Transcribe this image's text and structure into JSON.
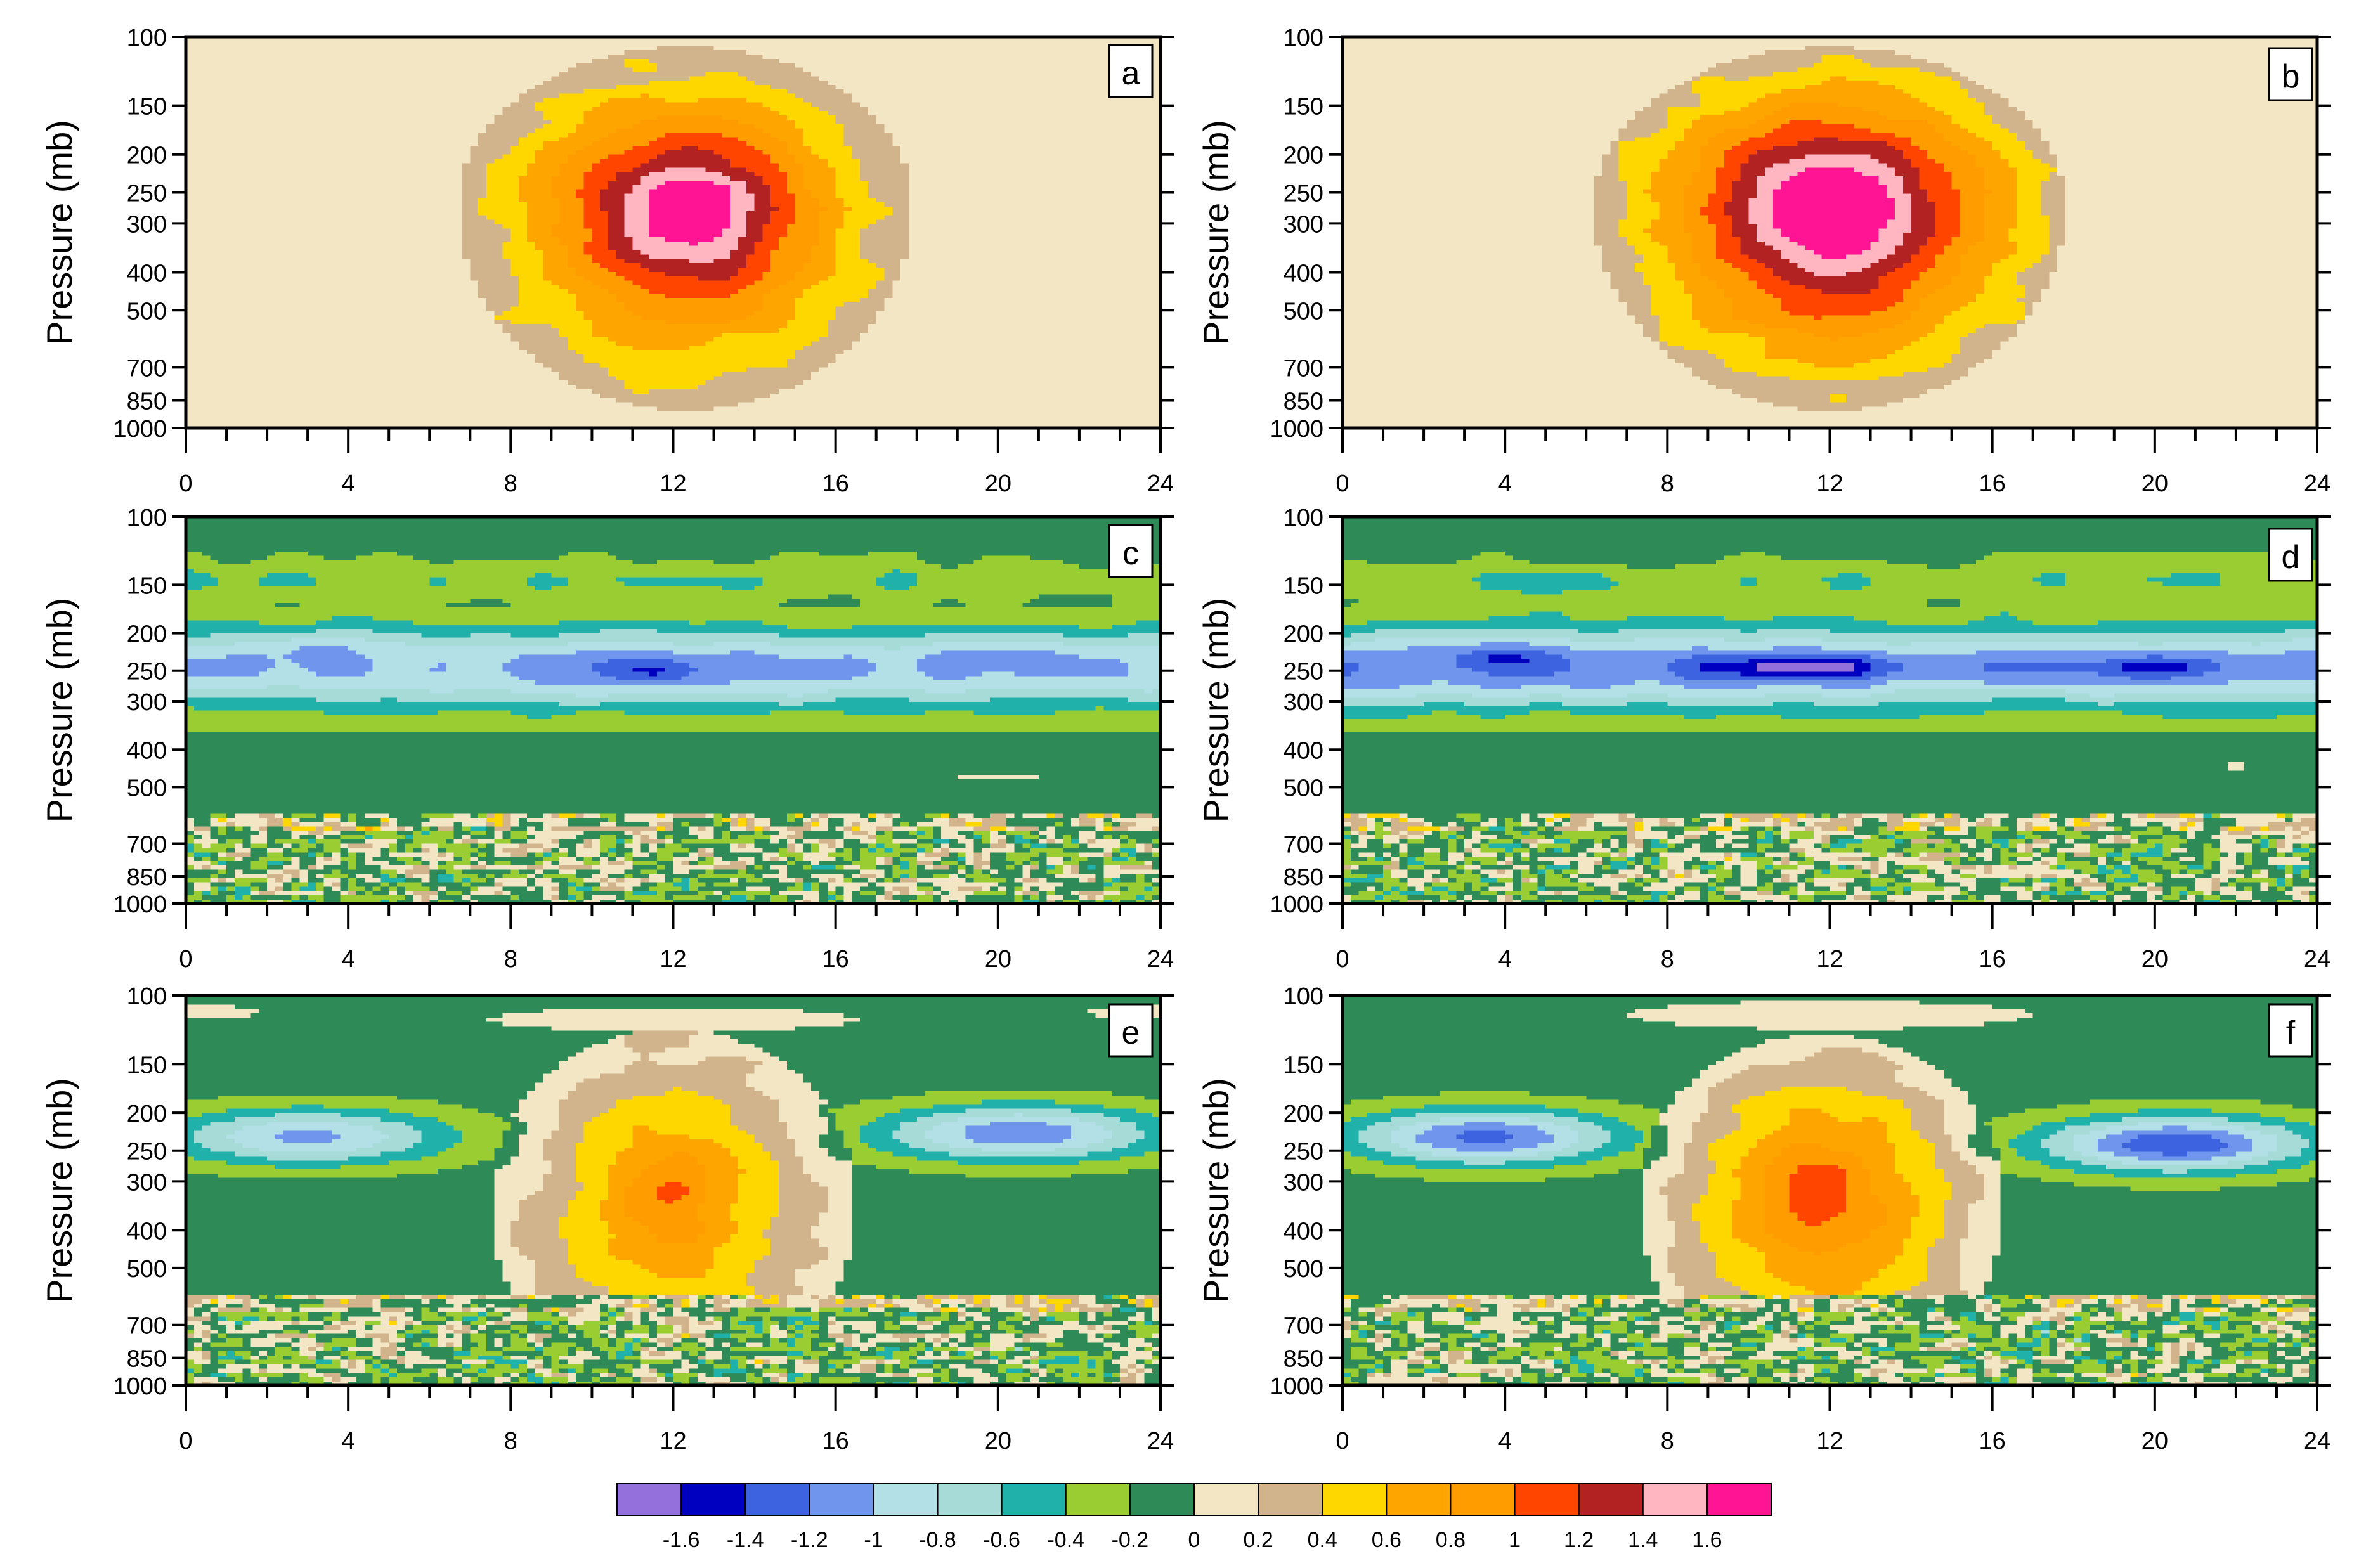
{
  "colors": {
    "levels": [
      -1.6,
      -1.4,
      -1.2,
      -1.0,
      -0.8,
      -0.6,
      -0.4,
      -0.2,
      0.0,
      0.2,
      0.4,
      0.6,
      0.8,
      1.0,
      1.2,
      1.4,
      1.6
    ],
    "fills": [
      "#9370db",
      "#0000c0",
      "#3e63e0",
      "#6f96ec",
      "#b3dfe6",
      "#a6dbd8",
      "#20b2aa",
      "#9acd32",
      "#2e8b57",
      "#f2e6c4",
      "#d2b48c",
      "#ffd700",
      "#ffa500",
      "#ff9d00",
      "#ff4500",
      "#b22222",
      "#ffb6c1",
      "#ff1493"
    ],
    "background": "#f5e6c4",
    "line": "#222222"
  },
  "chart_data": [
    {
      "type": "heatmap",
      "panel_label": "a",
      "ylabel": "Pressure (mb)",
      "xlim": [
        0,
        24
      ],
      "xticks": [
        "0",
        "4",
        "8",
        "12",
        "16",
        "20",
        "24"
      ],
      "ylim": [
        1000,
        100
      ],
      "yticks": [
        "100",
        "150",
        "200",
        "250",
        "300",
        "400",
        "500",
        "700",
        "850",
        "1000"
      ],
      "background_value": 0.1,
      "features": [
        {
          "kind": "blob",
          "x": 12.3,
          "p": 270,
          "xr": 5.6,
          "pr_low": 220,
          "pr_high": 120,
          "peak": 1.75,
          "power": 1.5
        }
      ]
    },
    {
      "type": "heatmap",
      "panel_label": "b",
      "ylabel": "Pressure (mb)",
      "xlim": [
        0,
        24
      ],
      "xticks": [
        "0",
        "4",
        "8",
        "12",
        "16",
        "20",
        "24"
      ],
      "ylim": [
        1000,
        100
      ],
      "yticks": [
        "100",
        "150",
        "200",
        "250",
        "300",
        "400",
        "500",
        "700",
        "850",
        "1000"
      ],
      "background_value": 0.1,
      "features": [
        {
          "kind": "blob",
          "x": 12.0,
          "p": 270,
          "xr": 5.8,
          "pr_low": 220,
          "pr_high": 120,
          "peak": 1.85,
          "power": 1.3
        }
      ]
    },
    {
      "type": "heatmap",
      "panel_label": "c",
      "ylabel": "Pressure (mb)",
      "xlim": [
        0,
        24
      ],
      "xticks": [
        "0",
        "4",
        "8",
        "12",
        "16",
        "20",
        "24"
      ],
      "ylim": [
        1000,
        100
      ],
      "yticks": [
        "100",
        "150",
        "200",
        "250",
        "300",
        "400",
        "500",
        "700",
        "850",
        "1000"
      ],
      "background_value": -0.1,
      "features": [
        {
          "kind": "band",
          "p": 245,
          "amp": -0.95,
          "width": 0.25
        },
        {
          "kind": "band",
          "p": 145,
          "amp": -0.25,
          "width": 0.12
        },
        {
          "kind": "dip",
          "x": 11.5,
          "p": 250,
          "xr": 1.4,
          "pr": 0.1,
          "amp": -0.35
        },
        {
          "kind": "dip",
          "x": 3.0,
          "p": 215,
          "xr": 1.5,
          "pr": 0.1,
          "amp": -0.2
        },
        {
          "kind": "dip",
          "x": 20.0,
          "p": 230,
          "xr": 1.6,
          "pr": 0.1,
          "amp": -0.2
        },
        {
          "kind": "dip",
          "x": 20.0,
          "p": 470,
          "xr": 3.0,
          "pr": 0.07,
          "amp": 0.12
        },
        {
          "kind": "noise",
          "p_top": 590,
          "p_bottom": 1000,
          "amp": 0.35
        }
      ]
    },
    {
      "type": "heatmap",
      "panel_label": "d",
      "ylabel": "Pressure (mb)",
      "xlim": [
        0,
        24
      ],
      "xticks": [
        "0",
        "4",
        "8",
        "12",
        "16",
        "20",
        "24"
      ],
      "ylim": [
        1000,
        100
      ],
      "yticks": [
        "100",
        "150",
        "200",
        "250",
        "300",
        "400",
        "500",
        "700",
        "850",
        "1000"
      ],
      "background_value": -0.1,
      "features": [
        {
          "kind": "band",
          "p": 245,
          "amp": -1.05,
          "width": 0.25
        },
        {
          "kind": "band",
          "p": 145,
          "amp": -0.25,
          "width": 0.12
        },
        {
          "kind": "dip",
          "x": 11.0,
          "p": 245,
          "xr": 2.6,
          "pr": 0.08,
          "amp": -0.6
        },
        {
          "kind": "dip",
          "x": 20.0,
          "p": 245,
          "xr": 1.5,
          "pr": 0.08,
          "amp": -0.4
        },
        {
          "kind": "dip",
          "x": 4.0,
          "p": 230,
          "xr": 1.2,
          "pr": 0.08,
          "amp": -0.3
        },
        {
          "kind": "dip",
          "x": 22.0,
          "p": 440,
          "xr": 1.2,
          "pr": 0.05,
          "amp": 0.12
        },
        {
          "kind": "noise",
          "p_top": 590,
          "p_bottom": 1000,
          "amp": 0.35
        }
      ]
    },
    {
      "type": "heatmap",
      "panel_label": "e",
      "ylabel": "Pressure (mb)",
      "xlim": [
        0,
        24
      ],
      "xticks": [
        "0",
        "4",
        "8",
        "12",
        "16",
        "20",
        "24"
      ],
      "ylim": [
        1000,
        100
      ],
      "yticks": [
        "100",
        "150",
        "200",
        "250",
        "300",
        "400",
        "500",
        "700",
        "850",
        "1000"
      ],
      "background_value": -0.1,
      "features": [
        {
          "kind": "dip",
          "x": 12.0,
          "p": 115,
          "xr": 6.5,
          "pr": 0.1,
          "amp": 0.2
        },
        {
          "kind": "dip",
          "x": 0.0,
          "p": 110,
          "xr": 2.5,
          "pr": 0.06,
          "amp": 0.2
        },
        {
          "kind": "dip",
          "x": 24.0,
          "p": 110,
          "xr": 2.5,
          "pr": 0.06,
          "amp": 0.2
        },
        {
          "kind": "dip",
          "x": 3.0,
          "p": 230,
          "xr": 4.2,
          "pr": 0.2,
          "amp": -0.95
        },
        {
          "kind": "dip",
          "x": 20.5,
          "p": 225,
          "xr": 4.2,
          "pr": 0.2,
          "amp": -1.05
        },
        {
          "kind": "blob",
          "x": 12.0,
          "p": 330,
          "xr": 4.5,
          "pr_low": 230,
          "pr_high": 140,
          "peak": 0.92,
          "power": 1.3
        },
        {
          "kind": "noise",
          "p_top": 590,
          "p_bottom": 1000,
          "amp": 0.35
        }
      ]
    },
    {
      "type": "heatmap",
      "panel_label": "f",
      "ylabel": "Pressure (mb)",
      "xlim": [
        0,
        24
      ],
      "xticks": [
        "0",
        "4",
        "8",
        "12",
        "16",
        "20",
        "24"
      ],
      "ylim": [
        1000,
        100
      ],
      "yticks": [
        "100",
        "150",
        "200",
        "250",
        "300",
        "400",
        "500",
        "700",
        "850",
        "1000"
      ],
      "background_value": -0.1,
      "features": [
        {
          "kind": "dip",
          "x": 12.0,
          "p": 112,
          "xr": 7.0,
          "pr": 0.12,
          "amp": 0.2
        },
        {
          "kind": "dip",
          "x": 3.5,
          "p": 230,
          "xr": 4.0,
          "pr": 0.2,
          "amp": -1.15
        },
        {
          "kind": "dip",
          "x": 20.5,
          "p": 240,
          "xr": 4.0,
          "pr": 0.2,
          "amp": -1.25
        },
        {
          "kind": "blob",
          "x": 11.8,
          "p": 320,
          "xr": 4.5,
          "pr_low": 240,
          "pr_high": 120,
          "peak": 1.1,
          "power": 1.2
        },
        {
          "kind": "noise",
          "p_top": 590,
          "p_bottom": 1000,
          "amp": 0.35
        }
      ]
    }
  ],
  "colorbar": {
    "labels": [
      "-1.6",
      "-1.4",
      "-1.2",
      "-1",
      "-0.8",
      "-0.6",
      "-0.4",
      "-0.2",
      "0",
      "0.2",
      "0.4",
      "0.6",
      "0.8",
      "1",
      "1.2",
      "1.4",
      "1.6"
    ]
  }
}
